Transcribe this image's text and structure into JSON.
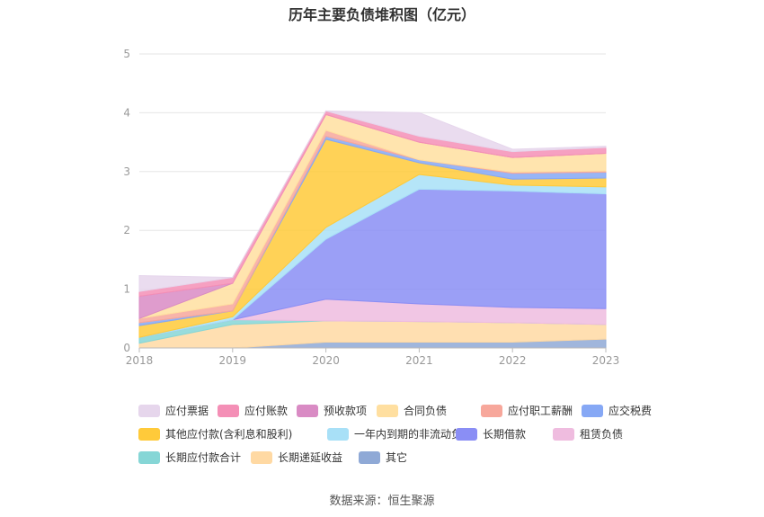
{
  "title": "历年主要负债堆积图（亿元）",
  "source": "数据来源：恒生聚源",
  "chart_data": {
    "type": "area",
    "stacked": true,
    "x": [
      "2018",
      "2019",
      "2020",
      "2021",
      "2022",
      "2023"
    ],
    "ylim": [
      0,
      5
    ],
    "yticks": [
      "0",
      "1",
      "2",
      "3",
      "4",
      "5"
    ],
    "grid": true,
    "legend_position": "bottom",
    "series": [
      {
        "name": "其它",
        "color": "#8fa9d6",
        "values": [
          0.0,
          0.0,
          0.1,
          0.1,
          0.1,
          0.15
        ]
      },
      {
        "name": "长期递延收益",
        "color": "#ffd9a3",
        "values": [
          0.08,
          0.4,
          0.36,
          0.35,
          0.33,
          0.25
        ]
      },
      {
        "name": "长期应付款合计",
        "color": "#86d6d6",
        "values": [
          0.1,
          0.08,
          0.0,
          0.0,
          0.0,
          0.0
        ]
      },
      {
        "name": "租赁负债",
        "color": "#efbcdf",
        "values": [
          0.0,
          0.0,
          0.37,
          0.3,
          0.26,
          0.27
        ]
      },
      {
        "name": "长期借款",
        "color": "#8a8ef5",
        "values": [
          0.0,
          0.0,
          1.02,
          1.95,
          1.98,
          1.95
        ]
      },
      {
        "name": "一年内到期的非流动负债",
        "color": "#a8e0f7",
        "values": [
          0.0,
          0.05,
          0.2,
          0.25,
          0.1,
          0.12
        ]
      },
      {
        "name": "其他应付款(含利息和股利)",
        "color": "#ffca3a",
        "values": [
          0.2,
          0.1,
          1.5,
          0.2,
          0.1,
          0.15
        ]
      },
      {
        "name": "应交税费",
        "color": "#86a8f5",
        "values": [
          0.05,
          0.0,
          0.05,
          0.05,
          0.1,
          0.1
        ]
      },
      {
        "name": "应付职工薪酬",
        "color": "#f7a79b",
        "values": [
          0.07,
          0.12,
          0.1,
          0.0,
          0.02,
          0.02
        ]
      },
      {
        "name": "合同负债",
        "color": "#ffdfa0",
        "values": [
          0.0,
          0.35,
          0.27,
          0.3,
          0.25,
          0.3
        ]
      },
      {
        "name": "预收款项",
        "color": "#d98bc4",
        "values": [
          0.38,
          0.0,
          0.0,
          0.0,
          0.0,
          0.0
        ]
      },
      {
        "name": "应付账款",
        "color": "#f48fb6",
        "values": [
          0.08,
          0.1,
          0.06,
          0.1,
          0.1,
          0.1
        ]
      },
      {
        "name": "应付票据",
        "color": "#e6d6ec",
        "values": [
          0.27,
          0.0,
          0.0,
          0.4,
          0.04,
          0.02
        ]
      }
    ]
  },
  "legend_order": [
    "应付票据",
    "应付账款",
    "预收款项",
    "合同负债",
    "应付职工薪酬",
    "应交税费",
    "其他应付款(含利息和股利)",
    "一年内到期的非流动负债",
    "长期借款",
    "租赁负债",
    "长期应付款合计",
    "长期递延收益",
    "其它"
  ]
}
